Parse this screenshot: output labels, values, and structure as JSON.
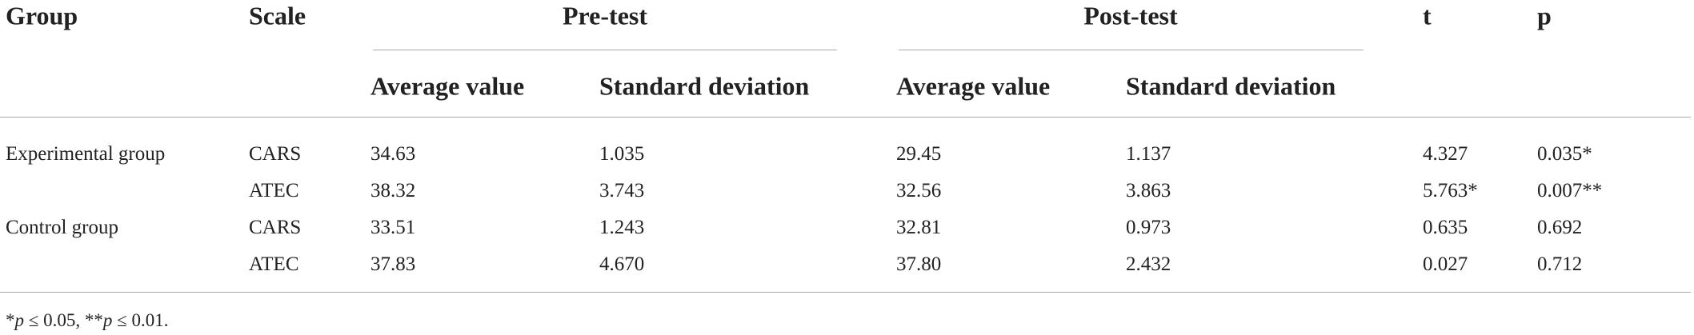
{
  "header": {
    "row1": [
      "Group",
      "Scale",
      "Pre-test",
      "Post-test",
      "t",
      "p"
    ],
    "row2": [
      "Average value",
      "Standard deviation",
      "Average value",
      "Standard deviation"
    ]
  },
  "table": {
    "rows": [
      [
        "Experimental group",
        "CARS",
        "34.63",
        "1.035",
        "29.45",
        "1.137",
        "4.327",
        "0.035*"
      ],
      [
        null,
        "ATEC",
        "38.32",
        "3.743",
        "32.56",
        "3.863",
        "5.763*",
        "0.007**"
      ],
      [
        "Control group",
        "CARS",
        "33.51",
        "1.243",
        "32.81",
        "0.973",
        "0.635",
        "0.692"
      ],
      [
        null,
        "ATEC",
        "37.83",
        "4.670",
        "37.80",
        "2.432",
        "0.027",
        "0.712"
      ]
    ]
  },
  "footnote": [
    "*",
    "p",
    " ≤ 0.05, **",
    "p",
    " ≤ 0.01."
  ]
}
